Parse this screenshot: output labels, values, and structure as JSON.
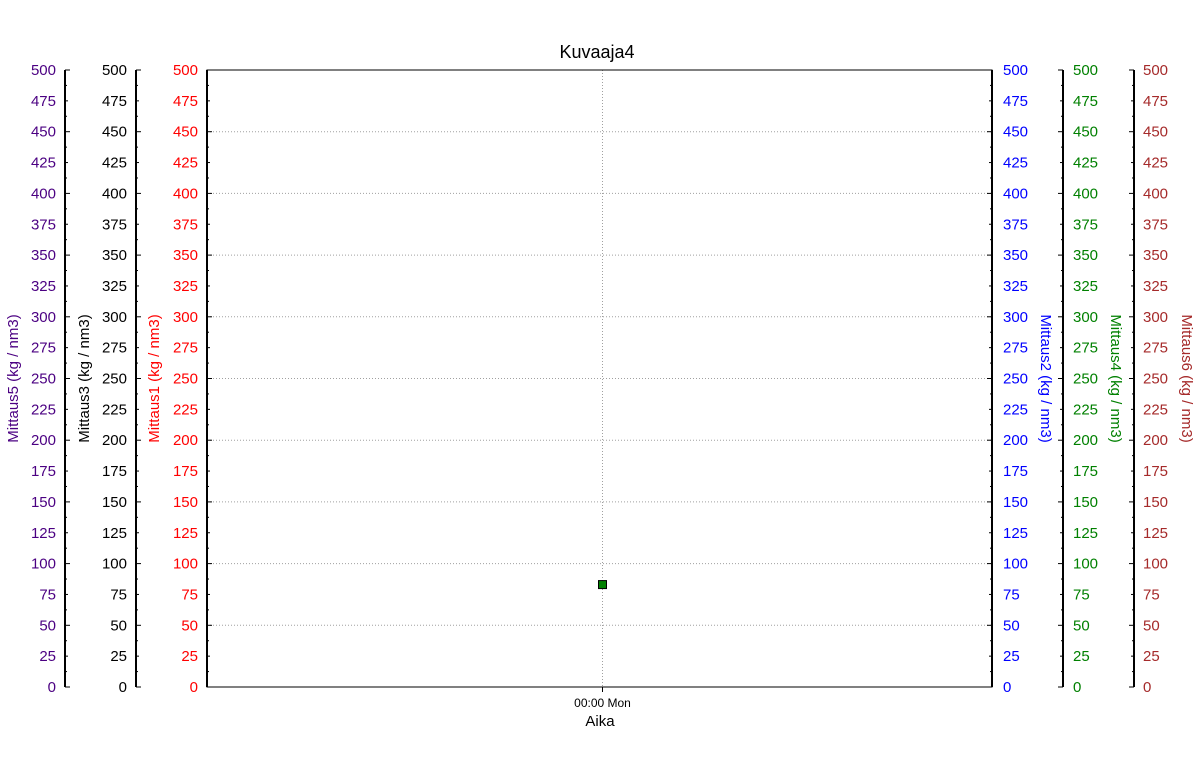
{
  "chart_data": {
    "type": "scatter",
    "title": "Kuvaaja4",
    "xlabel": "Aika",
    "x_ticks": [
      "00:00 Mon"
    ],
    "grid": true,
    "y_axes": [
      {
        "id": "mittaus5",
        "label": "Mittaus5   (kg / nm3)",
        "side": "left",
        "color": "#4b0082",
        "ylim": [
          0,
          500
        ]
      },
      {
        "id": "mittaus3",
        "label": "Mittaus3   (kg / nm3)",
        "side": "left",
        "color": "#000000",
        "ylim": [
          0,
          500
        ]
      },
      {
        "id": "mittaus1",
        "label": "Mittaus1   (kg / nm3)",
        "side": "left",
        "color": "#ff0000",
        "ylim": [
          0,
          500
        ]
      },
      {
        "id": "mittaus2",
        "label": "Mittaus2   (kg / nm3)",
        "side": "right",
        "color": "#0000ff",
        "ylim": [
          0,
          500
        ]
      },
      {
        "id": "mittaus4",
        "label": "Mittaus4   (kg / nm3)",
        "side": "right",
        "color": "#008000",
        "ylim": [
          0,
          500
        ]
      },
      {
        "id": "mittaus6",
        "label": "Mittaus6   (kg / nm3)",
        "side": "right",
        "color": "#a52a2a",
        "ylim": [
          0,
          500
        ]
      }
    ],
    "y_tick_step": 25,
    "series": [
      {
        "axis": "mittaus4",
        "color": "#008000",
        "points": [
          {
            "x": "00:00 Mon",
            "y": 83
          }
        ]
      }
    ]
  }
}
